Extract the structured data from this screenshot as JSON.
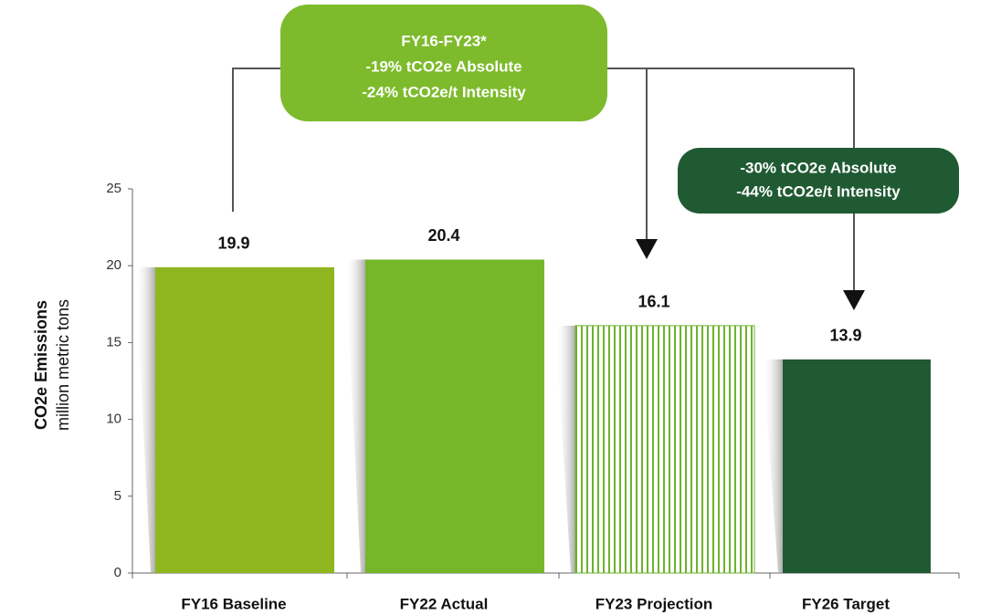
{
  "chart_data": {
    "type": "bar",
    "y_label_bold": "CO2e Emissions",
    "y_label": "million metric tons",
    "categories": [
      "FY16 Baseline",
      "FY22 Actual",
      "FY23 Projection",
      "FY26 Target"
    ],
    "values": [
      19.9,
      20.4,
      16.1,
      13.9
    ],
    "colors": [
      "#8fb51f",
      "#76b72a",
      "#6cb22e",
      "#1f5a33"
    ],
    "patterns": [
      "solid",
      "solid",
      "hatch",
      "solid"
    ],
    "ylim": [
      0,
      25
    ],
    "yticks": [
      0,
      5,
      10,
      15,
      20,
      25
    ],
    "annotations": [
      {
        "lines": [
          "FY16-FY23*",
          "-19% tCO2e Absolute",
          "-24% tCO2e/t Intensity"
        ],
        "color": "#7dbb2c"
      },
      {
        "lines": [
          "-30% tCO2e Absolute",
          "-44% tCO2e/t Intensity"
        ],
        "color": "#1f5a33"
      }
    ]
  }
}
